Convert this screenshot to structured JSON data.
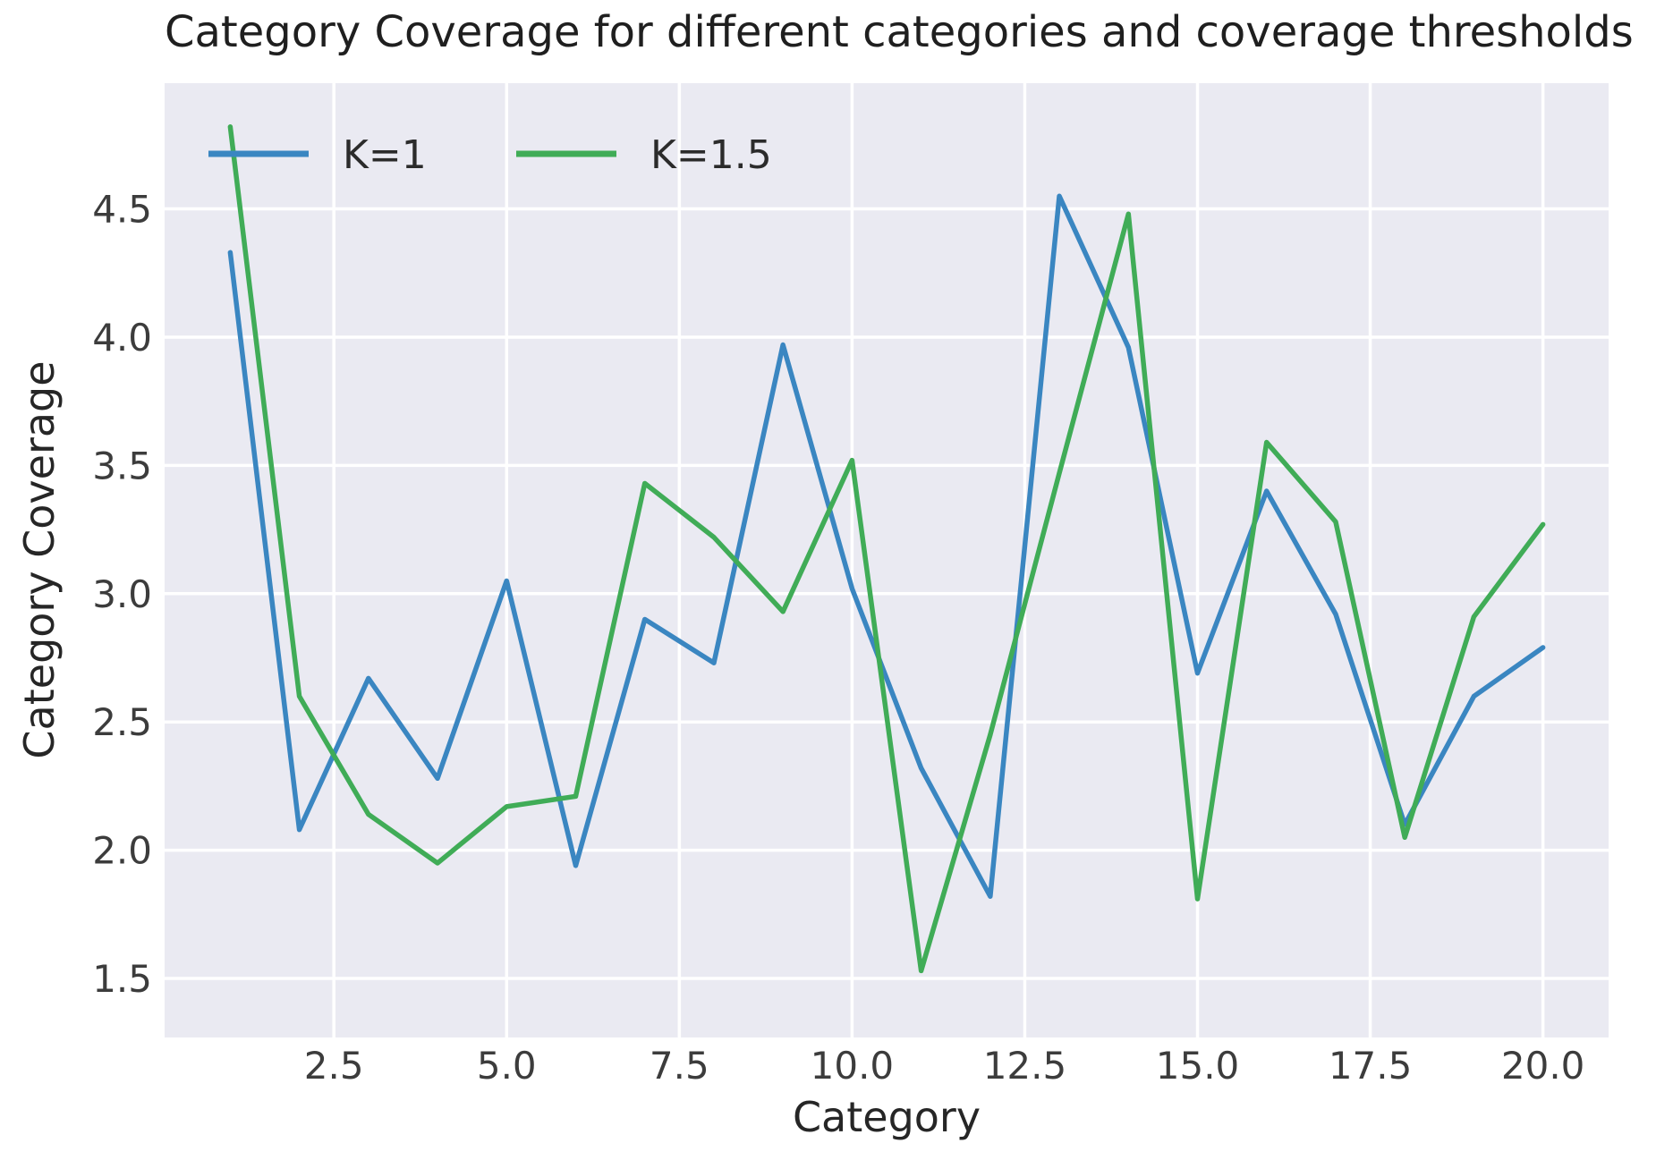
{
  "chart_data": {
    "type": "line",
    "title": "Category Coverage for different categories and coverage thresholds",
    "xlabel": "Category",
    "ylabel": "Category Coverage",
    "x": [
      1,
      2,
      3,
      4,
      5,
      6,
      7,
      8,
      9,
      10,
      11,
      12,
      13,
      14,
      15,
      16,
      17,
      18,
      19,
      20
    ],
    "series": [
      {
        "name": "K=1",
        "color": "#3a86c1",
        "values": [
          4.33,
          2.08,
          2.67,
          2.28,
          3.05,
          1.94,
          2.9,
          2.73,
          3.97,
          3.02,
          2.32,
          1.82,
          4.55,
          3.96,
          2.69,
          3.4,
          2.92,
          2.1,
          2.6,
          2.79
        ]
      },
      {
        "name": "K=1.5",
        "color": "#40ac57",
        "values": [
          4.82,
          2.6,
          2.14,
          1.95,
          2.17,
          2.21,
          3.43,
          3.22,
          2.93,
          3.52,
          1.53,
          2.45,
          3.47,
          4.48,
          1.81,
          3.59,
          3.28,
          2.05,
          2.91,
          3.27
        ]
      }
    ],
    "xticks": {
      "values": [
        2.5,
        5.0,
        7.5,
        10.0,
        12.5,
        15.0,
        17.5,
        20.0
      ],
      "labels": [
        "2.5",
        "5.0",
        "7.5",
        "10.0",
        "12.5",
        "15.0",
        "17.5",
        "20.0"
      ]
    },
    "yticks": {
      "values": [
        1.5,
        2.0,
        2.5,
        3.0,
        3.5,
        4.0,
        4.5
      ],
      "labels": [
        "1.5",
        "2.0",
        "2.5",
        "3.0",
        "3.5",
        "4.0",
        "4.5"
      ]
    },
    "xlim": [
      0.05,
      20.95
    ],
    "ylim": [
      1.27,
      4.99
    ],
    "grid": true,
    "legend": {
      "position": "upper-left-inside",
      "orientation": "horizontal",
      "entries": [
        "K=1",
        "K=1.5"
      ]
    }
  },
  "colors": {
    "plot_background": "#eaeaf2",
    "gridline": "#ffffff",
    "figure_background": "#ffffff",
    "title_text": "#1f1f1f",
    "tick_text": "#3c3c3c"
  }
}
